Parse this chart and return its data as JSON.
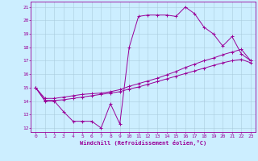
{
  "xlabel": "Windchill (Refroidissement éolien,°C)",
  "background_color": "#cceeff",
  "line_color": "#990099",
  "grid_color": "#aaccdd",
  "xlim": [
    -0.5,
    23.5
  ],
  "ylim": [
    11.7,
    21.4
  ],
  "xticks": [
    0,
    1,
    2,
    3,
    4,
    5,
    6,
    7,
    8,
    9,
    10,
    11,
    12,
    13,
    14,
    15,
    16,
    17,
    18,
    19,
    20,
    21,
    22,
    23
  ],
  "yticks": [
    12,
    13,
    14,
    15,
    16,
    17,
    18,
    19,
    20,
    21
  ],
  "line1_x": [
    0,
    1,
    2,
    3,
    4,
    5,
    6,
    7,
    8,
    9,
    10,
    11,
    12,
    13,
    14,
    15,
    16,
    17,
    18,
    19,
    20,
    21,
    22,
    23
  ],
  "line1_y": [
    15.0,
    14.0,
    14.0,
    13.2,
    12.5,
    12.5,
    12.5,
    12.0,
    13.8,
    12.3,
    18.0,
    20.3,
    20.4,
    20.4,
    20.4,
    20.3,
    21.0,
    20.5,
    19.5,
    19.0,
    18.1,
    18.8,
    17.5,
    17.0
  ],
  "line2_x": [
    0,
    1,
    2,
    3,
    4,
    5,
    6,
    7,
    8,
    9,
    10,
    11,
    12,
    13,
    14,
    15,
    16,
    17,
    18,
    19,
    20,
    21,
    22,
    23
  ],
  "line2_y": [
    15.0,
    14.2,
    14.2,
    14.3,
    14.4,
    14.5,
    14.55,
    14.6,
    14.7,
    14.85,
    15.1,
    15.3,
    15.5,
    15.7,
    15.95,
    16.2,
    16.5,
    16.75,
    17.0,
    17.2,
    17.45,
    17.65,
    17.85,
    17.0
  ],
  "line3_x": [
    0,
    1,
    2,
    3,
    4,
    5,
    6,
    7,
    8,
    9,
    10,
    11,
    12,
    13,
    14,
    15,
    16,
    17,
    18,
    19,
    20,
    21,
    22,
    23
  ],
  "line3_y": [
    15.0,
    14.05,
    14.05,
    14.1,
    14.2,
    14.3,
    14.4,
    14.5,
    14.6,
    14.7,
    14.9,
    15.05,
    15.25,
    15.45,
    15.65,
    15.85,
    16.05,
    16.25,
    16.45,
    16.65,
    16.85,
    17.0,
    17.1,
    16.85
  ]
}
